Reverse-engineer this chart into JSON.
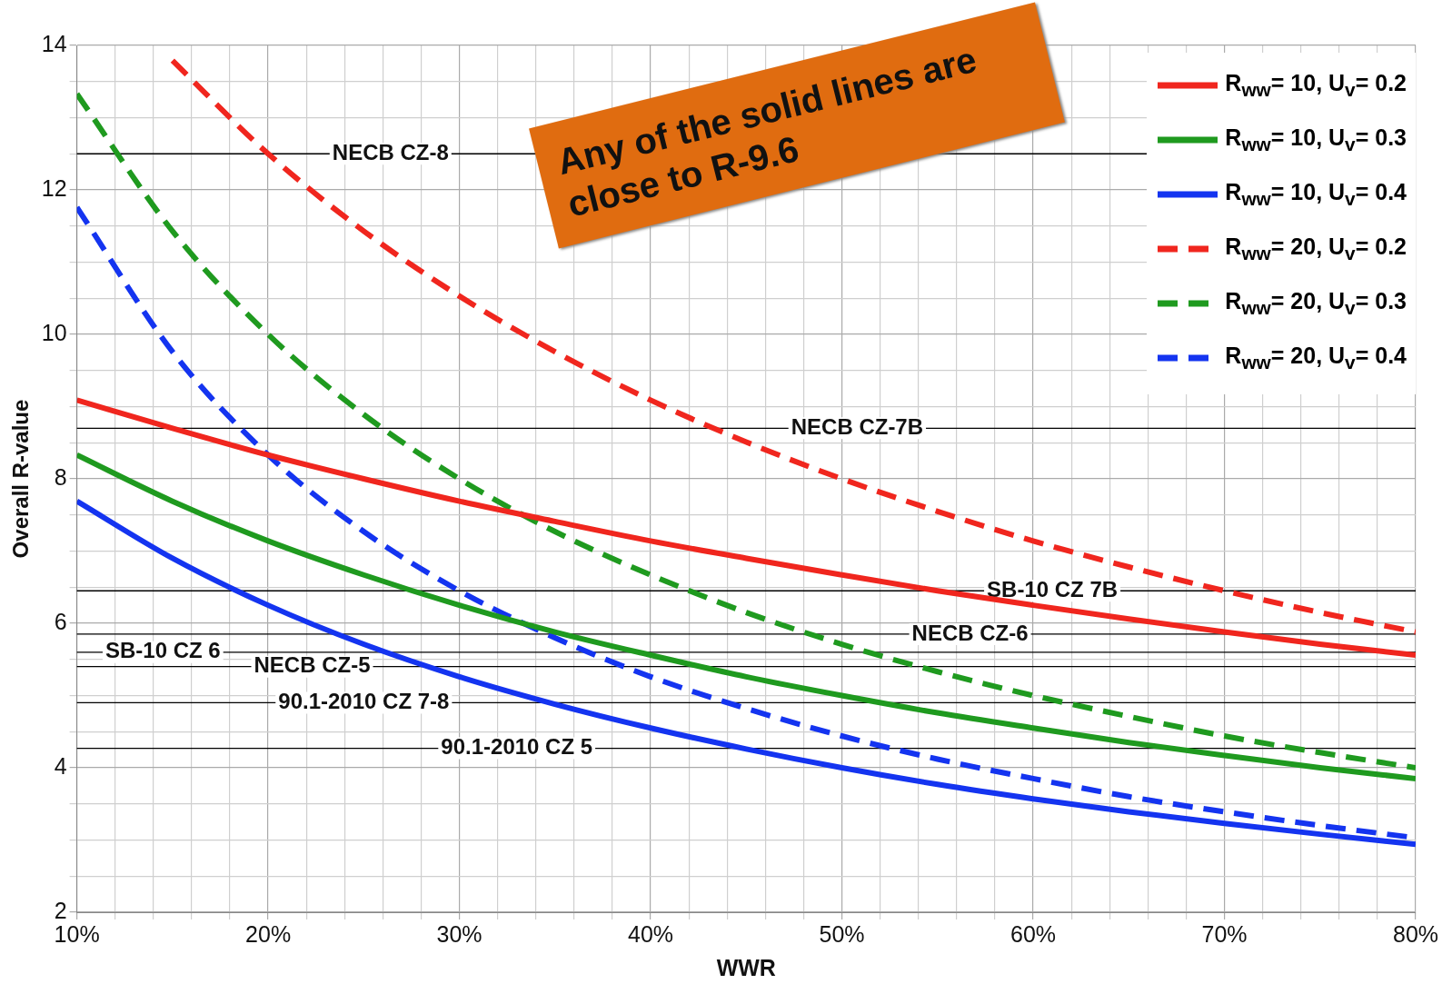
{
  "chart_data": {
    "type": "line",
    "xlabel": "WWR",
    "ylabel": "Overall R-value",
    "x": [
      10,
      15,
      20,
      25,
      30,
      35,
      40,
      45,
      50,
      55,
      60,
      65,
      70,
      75,
      80
    ],
    "series": [
      {
        "name": "R$_{ww}$= 10, U$_{v}$= 0.2",
        "color": "#f0261e",
        "line_style": "solid",
        "values": [
          9.09,
          8.7,
          8.33,
          8.0,
          7.69,
          7.41,
          7.14,
          6.9,
          6.67,
          6.45,
          6.25,
          6.06,
          5.88,
          5.71,
          5.56
        ]
      },
      {
        "name": "R$_{ww}$= 10, U$_{v}$= 0.3",
        "color": "#1f9a1f",
        "line_style": "solid",
        "values": [
          8.33,
          7.69,
          7.14,
          6.67,
          6.25,
          5.88,
          5.56,
          5.26,
          5.0,
          4.76,
          4.55,
          4.35,
          4.17,
          4.0,
          3.85
        ]
      },
      {
        "name": "R$_{ww}$= 10, U$_{v}$= 0.4",
        "color": "#1434f0",
        "line_style": "solid",
        "values": [
          7.69,
          6.9,
          6.25,
          5.71,
          5.26,
          4.88,
          4.55,
          4.26,
          4.0,
          3.77,
          3.57,
          3.39,
          3.23,
          3.08,
          2.94
        ]
      },
      {
        "name": "R$_{ww}$= 20, U$_{v}$= 0.2",
        "color": "#f0261e",
        "line_style": "dashed",
        "values": [
          null,
          13.79,
          12.5,
          11.43,
          10.53,
          9.76,
          9.09,
          8.51,
          8.0,
          7.55,
          7.14,
          6.78,
          6.45,
          6.15,
          5.88
        ]
      },
      {
        "name": "R$_{ww}$= 20, U$_{v}$= 0.3",
        "color": "#1f9a1f",
        "line_style": "dashed",
        "values": [
          13.33,
          11.43,
          10.0,
          8.89,
          8.0,
          7.27,
          6.67,
          6.15,
          5.71,
          5.33,
          5.0,
          4.71,
          4.44,
          4.21,
          4.0
        ]
      },
      {
        "name": "R$_{ww}$= 20, U$_{v}$= 0.4",
        "color": "#1434f0",
        "line_style": "dashed",
        "values": [
          11.76,
          9.76,
          8.33,
          7.27,
          6.45,
          5.8,
          5.26,
          4.82,
          4.44,
          4.12,
          3.85,
          3.6,
          3.39,
          3.2,
          3.03
        ]
      }
    ],
    "xlim": [
      10,
      80
    ],
    "xticks": [
      {
        "value": 10,
        "label": "10%"
      },
      {
        "value": 12,
        "label": null
      },
      {
        "value": 14,
        "label": null
      },
      {
        "value": 16,
        "label": null
      },
      {
        "value": 18,
        "label": null
      },
      {
        "value": 20,
        "label": "20%"
      },
      {
        "value": 22,
        "label": null
      },
      {
        "value": 24,
        "label": null
      },
      {
        "value": 26,
        "label": null
      },
      {
        "value": 28,
        "label": null
      },
      {
        "value": 30,
        "label": "30%"
      },
      {
        "value": 32,
        "label": null
      },
      {
        "value": 34,
        "label": null
      },
      {
        "value": 36,
        "label": null
      },
      {
        "value": 38,
        "label": null
      },
      {
        "value": 40,
        "label": "40%"
      },
      {
        "value": 42,
        "label": null
      },
      {
        "value": 44,
        "label": null
      },
      {
        "value": 46,
        "label": null
      },
      {
        "value": 48,
        "label": null
      },
      {
        "value": 50,
        "label": "50%"
      },
      {
        "value": 52,
        "label": null
      },
      {
        "value": 54,
        "label": null
      },
      {
        "value": 56,
        "label": null
      },
      {
        "value": 58,
        "label": null
      },
      {
        "value": 60,
        "label": "60%"
      },
      {
        "value": 62,
        "label": null
      },
      {
        "value": 64,
        "label": null
      },
      {
        "value": 66,
        "label": null
      },
      {
        "value": 68,
        "label": null
      },
      {
        "value": 70,
        "label": "70%"
      },
      {
        "value": 72,
        "label": null
      },
      {
        "value": 74,
        "label": null
      },
      {
        "value": 76,
        "label": null
      },
      {
        "value": 78,
        "label": null
      },
      {
        "value": 80,
        "label": "80%"
      }
    ],
    "ylim": [
      2,
      14
    ],
    "yticks": [
      2,
      {
        "value": 2.5,
        "label": null
      },
      {
        "value": 3,
        "label": null
      },
      {
        "value": 3.5,
        "label": null
      },
      4,
      {
        "value": 4.5,
        "label": null
      },
      {
        "value": 5,
        "label": null
      },
      {
        "value": 5.5,
        "label": null
      },
      6,
      {
        "value": 6.5,
        "label": null
      },
      {
        "value": 7,
        "label": null
      },
      {
        "value": 7.5,
        "label": null
      },
      8,
      {
        "value": 8.5,
        "label": null
      },
      {
        "value": 9,
        "label": null
      },
      {
        "value": 9.5,
        "label": null
      },
      10,
      {
        "value": 10.5,
        "label": null
      },
      {
        "value": 11,
        "label": null
      },
      {
        "value": 11.5,
        "label": null
      },
      12,
      {
        "value": 12.5,
        "label": null
      },
      {
        "value": 13,
        "label": null
      },
      {
        "value": 13.5,
        "label": null
      },
      14
    ],
    "grid": true,
    "legend": "top right",
    "marker": "none",
    "ref_lines": [
      {
        "axis": "y",
        "value": 12.5,
        "color": "#000000"
      },
      {
        "axis": "y",
        "value": 8.7,
        "color": "#000000"
      },
      {
        "axis": "y",
        "value": 6.45,
        "color": "#000000"
      },
      {
        "axis": "y",
        "value": 5.85,
        "color": "#000000"
      },
      {
        "axis": "y",
        "value": 5.6,
        "color": "#000000"
      },
      {
        "axis": "y",
        "value": 5.4,
        "color": "#000000"
      },
      {
        "axis": "y",
        "value": 4.9,
        "color": "#000000"
      },
      {
        "axis": "y",
        "value": 4.27,
        "color": "#000000"
      }
    ],
    "annotations": [
      {
        "text": "NECB CZ-8",
        "x": 26.4,
        "y": 12.5
      },
      {
        "text": "NECB CZ-7B",
        "x": 50.8,
        "y": 8.7
      },
      {
        "text": "SB-10 CZ 7B",
        "x": 61,
        "y": 6.45
      },
      {
        "text": "NECB CZ-6",
        "x": 56.7,
        "y": 5.85
      },
      {
        "text": "SB-10 CZ 6",
        "x": 14.5,
        "y": 5.6
      },
      {
        "text": "NECB CZ-5",
        "x": 22.3,
        "y": 5.4
      },
      {
        "text": "90.1-2010 CZ 7-8",
        "x": 25,
        "y": 4.9
      },
      {
        "text": "90.1-2010 CZ 5",
        "x": 33,
        "y": 4.27
      },
      "Any of the solid lines are close to R-9.6"
    ]
  }
}
